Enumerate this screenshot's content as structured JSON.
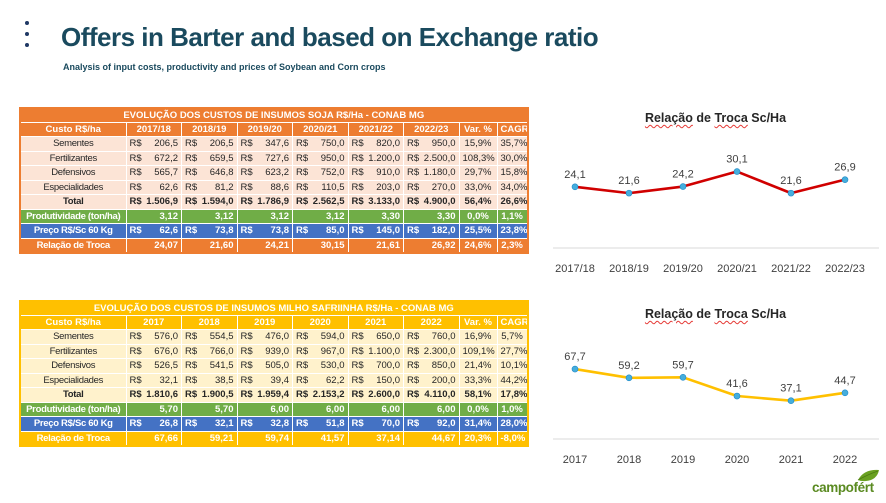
{
  "header": {
    "title": "Offers in Barter and based on Exchange ratio",
    "subtitle": "Analysis of input costs, productivity and prices of Soybean and Corn crops",
    "accent_color": "#1A4A5E"
  },
  "currency_prefix": "R$",
  "tables": [
    {
      "id": "soja",
      "title": "EVOLUÇÃO DOS CUSTOS DE INSUMOS SOJA R$/Ha - CONAB MG",
      "colors": {
        "header": "#ED7D31",
        "body": "#FCE4D6",
        "productivity": "#70AD47",
        "price": "#4472C4"
      },
      "columns": [
        "Custo R$/ha",
        "2017/18",
        "2018/19",
        "2019/20",
        "2020/21",
        "2021/22",
        "2022/23",
        "Var. %",
        "CAGR"
      ],
      "rows": [
        {
          "label": "Sementes",
          "type": "data",
          "currency": true,
          "values": [
            "206,5",
            "206,5",
            "347,6",
            "750,0",
            "820,0",
            "950,0"
          ],
          "var": "15,9%",
          "cagr": "35,7%"
        },
        {
          "label": "Fertilizantes",
          "type": "data",
          "currency": true,
          "values": [
            "672,2",
            "659,5",
            "727,6",
            "950,0",
            "1.200,0",
            "2.500,0"
          ],
          "var": "108,3%",
          "cagr": "30,0%"
        },
        {
          "label": "Defensivos",
          "type": "data",
          "currency": true,
          "values": [
            "565,7",
            "646,8",
            "623,2",
            "752,0",
            "910,0",
            "1.180,0"
          ],
          "var": "29,7%",
          "cagr": "15,8%"
        },
        {
          "label": "Especialidades",
          "type": "data",
          "currency": true,
          "values": [
            "62,6",
            "81,2",
            "88,6",
            "110,5",
            "203,0",
            "270,0"
          ],
          "var": "33,0%",
          "cagr": "34,0%"
        },
        {
          "label": "Total",
          "type": "total",
          "currency": true,
          "values": [
            "1.506,9",
            "1.594,0",
            "1.786,9",
            "2.562,5",
            "3.133,0",
            "4.900,0"
          ],
          "var": "56,4%",
          "cagr": "26,6%"
        },
        {
          "label": "Produtividade (ton/ha)",
          "type": "productivity",
          "currency": false,
          "values": [
            "3,12",
            "3,12",
            "3,12",
            "3,12",
            "3,30",
            "3,30"
          ],
          "var": "0,0%",
          "cagr": "1,1%"
        },
        {
          "label": "Preço R$/Sc 60 Kg",
          "type": "price",
          "currency": true,
          "values": [
            "62,6",
            "73,8",
            "73,8",
            "85,0",
            "145,0",
            "182,0"
          ],
          "var": "25,5%",
          "cagr": "23,8%"
        },
        {
          "label": "Relação de Troca",
          "type": "exchange",
          "currency": false,
          "values": [
            "24,07",
            "21,60",
            "24,21",
            "30,15",
            "21,61",
            "26,92"
          ],
          "var": "24,6%",
          "cagr": "2,3%"
        }
      ]
    },
    {
      "id": "milho",
      "title": "EVOLUÇÃO DOS CUSTOS DE INSUMOS MILHO SAFRIINHA R$/Ha - CONAB MG",
      "colors": {
        "header": "#FFC000",
        "body": "#FFF2CC",
        "productivity": "#70AD47",
        "price": "#4472C4"
      },
      "columns": [
        "Custo R$/ha",
        "2017",
        "2018",
        "2019",
        "2020",
        "2021",
        "2022",
        "Var. %",
        "CAGR"
      ],
      "rows": [
        {
          "label": "Sementes",
          "type": "data",
          "currency": true,
          "values": [
            "576,0",
            "554,5",
            "476,0",
            "594,0",
            "650,0",
            "760,0"
          ],
          "var": "16,9%",
          "cagr": "5,7%"
        },
        {
          "label": "Fertilizantes",
          "type": "data",
          "currency": true,
          "values": [
            "676,0",
            "766,0",
            "939,0",
            "967,0",
            "1.100,0",
            "2.300,0"
          ],
          "var": "109,1%",
          "cagr": "27,7%"
        },
        {
          "label": "Defensivos",
          "type": "data",
          "currency": true,
          "values": [
            "526,5",
            "541,5",
            "505,0",
            "530,0",
            "700,0",
            "850,0"
          ],
          "var": "21,4%",
          "cagr": "10,1%"
        },
        {
          "label": "Especialidades",
          "type": "data",
          "currency": true,
          "values": [
            "32,1",
            "38,5",
            "39,4",
            "62,2",
            "150,0",
            "200,0"
          ],
          "var": "33,3%",
          "cagr": "44,2%"
        },
        {
          "label": "Total",
          "type": "total",
          "currency": true,
          "values": [
            "1.810,6",
            "1.900,5",
            "1.959,4",
            "2.153,2",
            "2.600,0",
            "4.110,0"
          ],
          "var": "58,1%",
          "cagr": "17,8%"
        },
        {
          "label": "Produtividade (ton/ha)",
          "type": "productivity",
          "currency": false,
          "values": [
            "5,70",
            "5,70",
            "6,00",
            "6,00",
            "6,00",
            "6,00"
          ],
          "var": "0,0%",
          "cagr": "1,0%"
        },
        {
          "label": "Preço R$/Sc 60 Kg",
          "type": "price",
          "currency": true,
          "values": [
            "26,8",
            "32,1",
            "32,8",
            "51,8",
            "70,0",
            "92,0"
          ],
          "var": "31,4%",
          "cagr": "28,0%"
        },
        {
          "label": "Relação de Troca",
          "type": "exchange",
          "currency": false,
          "values": [
            "67,66",
            "59,21",
            "59,74",
            "41,57",
            "37,14",
            "44,67"
          ],
          "var": "20,3%",
          "cagr": "-8,0%"
        }
      ]
    }
  ],
  "chart_data": [
    {
      "type": "line",
      "title": "Relação de Troca Sc/Ha",
      "title_words": [
        {
          "text": "Relação",
          "wavy": true
        },
        {
          "text": "de",
          "wavy": false
        },
        {
          "text": "Troca",
          "wavy": true
        },
        {
          "text": "Sc/Ha",
          "wavy": false
        }
      ],
      "categories": [
        "2017/18",
        "2018/19",
        "2019/20",
        "2020/21",
        "2021/22",
        "2022/23"
      ],
      "values": [
        24.1,
        21.6,
        24.2,
        30.1,
        21.6,
        26.9
      ],
      "labels": [
        "24,1",
        "21,6",
        "24,2",
        "30,1",
        "21,6",
        "26,9"
      ],
      "line_color": "#D00000",
      "marker_color": "#45AEDD",
      "axis_color": "#D9D9D9",
      "ylim": [
        0,
        50
      ],
      "xlabel": "",
      "ylabel": "",
      "grid": false,
      "legend": false
    },
    {
      "type": "line",
      "title": "Relação de Troca Sc/Ha",
      "title_words": [
        {
          "text": "Relação",
          "wavy": true
        },
        {
          "text": "de",
          "wavy": false
        },
        {
          "text": "Troca",
          "wavy": true
        },
        {
          "text": "Sc/Ha",
          "wavy": false
        }
      ],
      "categories": [
        "2017",
        "2018",
        "2019",
        "2020",
        "2021",
        "2022"
      ],
      "values": [
        67.7,
        59.2,
        59.7,
        41.6,
        37.1,
        44.7
      ],
      "labels": [
        "67,7",
        "59,2",
        "59,7",
        "41,6",
        "37,1",
        "44,7"
      ],
      "line_color": "#FFC000",
      "marker_color": "#45AEDD",
      "axis_color": "#D9D9D9",
      "ylim": [
        0,
        120
      ],
      "xlabel": "",
      "ylabel": "",
      "grid": false,
      "legend": false
    }
  ],
  "logo": {
    "text": "campofért",
    "color": "#5A8A21"
  }
}
